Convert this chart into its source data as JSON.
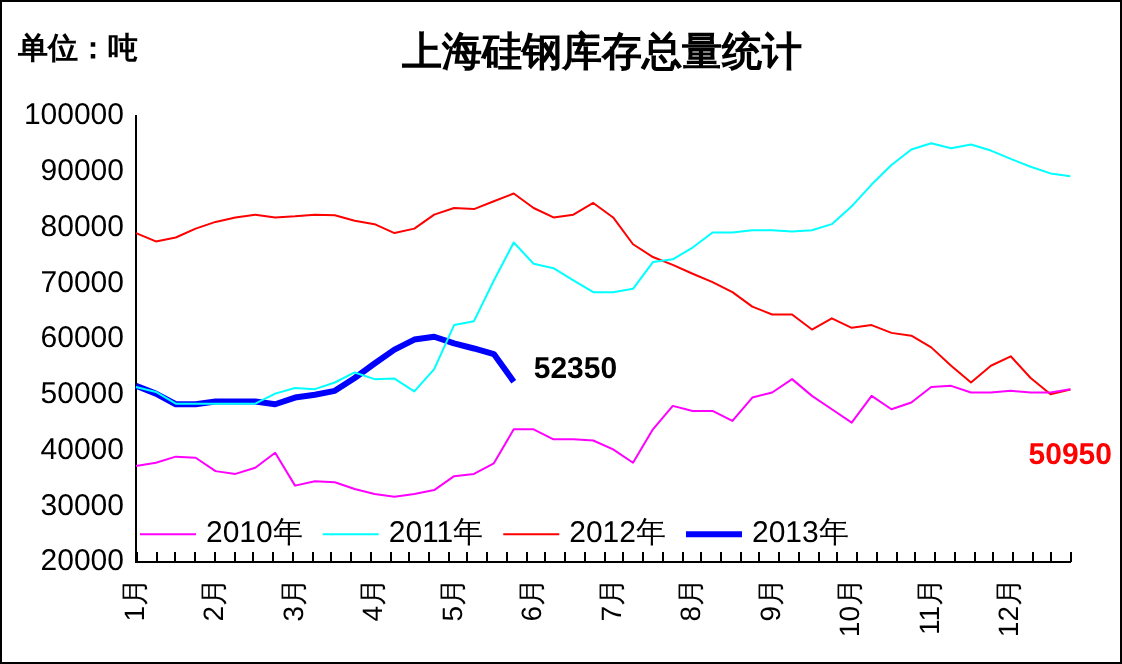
{
  "chart_data": {
    "type": "line",
    "title": "上海硅钢库存总量统计",
    "ylabel": "单位：吨",
    "categories": [
      "1月",
      null,
      null,
      null,
      "2月",
      null,
      null,
      null,
      "3月",
      null,
      null,
      null,
      "4月",
      null,
      null,
      null,
      "5月",
      null,
      null,
      null,
      "6月",
      null,
      null,
      null,
      "7月",
      null,
      null,
      null,
      "8月",
      null,
      null,
      null,
      "9月",
      null,
      null,
      null,
      "10月",
      null,
      null,
      null,
      "11月",
      null,
      null,
      null,
      "12月",
      null,
      null,
      null
    ],
    "series": [
      {
        "name": "2010年",
        "color": "#ff00ff",
        "values": [
          37200,
          37800,
          38900,
          38700,
          36300,
          35800,
          36900,
          39600,
          33700,
          34500,
          34300,
          33100,
          32200,
          31700,
          32200,
          32900,
          35400,
          35800,
          37700,
          43800,
          43800,
          42000,
          42000,
          41800,
          40200,
          37800,
          43800,
          48000,
          47100,
          47100,
          45300,
          49500,
          50400,
          52800,
          49800,
          47400,
          45000,
          49800,
          47400,
          48600,
          51400,
          51600,
          50400,
          50400,
          50700,
          50400,
          50400,
          51000
        ]
      },
      {
        "name": "2011年",
        "color": "#00ffff",
        "values": [
          51400,
          50500,
          48400,
          48400,
          48400,
          48400,
          48400,
          50200,
          51200,
          51000,
          52200,
          54000,
          52800,
          52900,
          50600,
          54600,
          62500,
          63200,
          70500,
          77300,
          73500,
          72700,
          70500,
          68400,
          68400,
          69000,
          73800,
          74300,
          76400,
          79100,
          79100,
          79500,
          79500,
          79300,
          79500,
          80600,
          83800,
          87700,
          91200,
          94000,
          95100,
          94200,
          94900,
          93800,
          92300,
          90900,
          89700,
          89200
        ]
      },
      {
        "name": "2012年",
        "color": "#ff0000",
        "values": [
          79000,
          77500,
          78200,
          79800,
          81000,
          81800,
          82300,
          81800,
          82000,
          82300,
          82200,
          81200,
          80600,
          79000,
          79800,
          82300,
          83500,
          83300,
          84700,
          86100,
          83500,
          81800,
          82300,
          84400,
          81800,
          77000,
          74700,
          73300,
          71700,
          70200,
          68400,
          65800,
          64400,
          64400,
          61700,
          63700,
          62000,
          62500,
          61100,
          60600,
          58500,
          55200,
          52200,
          55200,
          56900,
          53000,
          50100,
          50950
        ]
      },
      {
        "name": "2013年",
        "color": "#0000ff",
        "values": [
          51600,
          50200,
          48300,
          48300,
          48800,
          48800,
          48800,
          48300,
          49500,
          50000,
          50700,
          53000,
          55600,
          58100,
          59900,
          60400,
          59200,
          58300,
          57300,
          52350,
          null,
          null,
          null,
          null,
          null,
          null,
          null,
          null,
          null,
          null,
          null,
          null,
          null,
          null,
          null,
          null,
          null,
          null,
          null,
          null,
          null,
          null,
          null,
          null,
          null,
          null,
          null,
          null
        ]
      }
    ],
    "ylim": [
      20000,
      100000
    ],
    "yticks": [
      20000,
      30000,
      40000,
      50000,
      60000,
      70000,
      80000,
      90000,
      100000
    ],
    "grid": false,
    "legend": "bottom left",
    "marker": "none",
    "line_style": "solid",
    "annotations": [
      "52350",
      "50950"
    ]
  }
}
